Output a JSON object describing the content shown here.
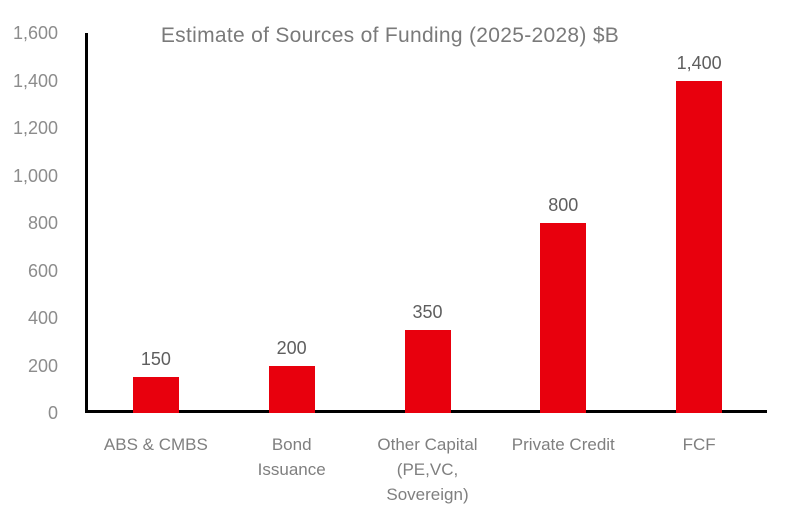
{
  "chart_data": {
    "type": "bar",
    "title": "Estimate of Sources of Funding (2025-2028) $B",
    "categories": [
      "ABS & CMBS",
      "Bond\nIssuance",
      "Other Capital\n(PE,VC,\nSovereign)",
      "Private Credit",
      "FCF"
    ],
    "values": [
      150,
      200,
      350,
      800,
      1400
    ],
    "value_labels": [
      "150",
      "200",
      "350",
      "800",
      "1,400"
    ],
    "yticks": [
      0,
      200,
      400,
      600,
      800,
      1000,
      1200,
      1400,
      1600
    ],
    "ytick_labels": [
      "0",
      "200",
      "400",
      "600",
      "800",
      "1,000",
      "1,200",
      "1,400",
      "1,600"
    ],
    "ylim": [
      0,
      1600
    ],
    "xlabel": "",
    "ylabel": "",
    "grid": false,
    "legend": "none",
    "bar_color": "#e8000d"
  },
  "colors": {
    "bar": "#e8000d",
    "axis": "#000000",
    "title_text": "#7a7a7a",
    "tick_text": "#8c8c8c",
    "value_text": "#5e5e5e",
    "category_text": "#7f7f7f",
    "background": "#ffffff"
  }
}
